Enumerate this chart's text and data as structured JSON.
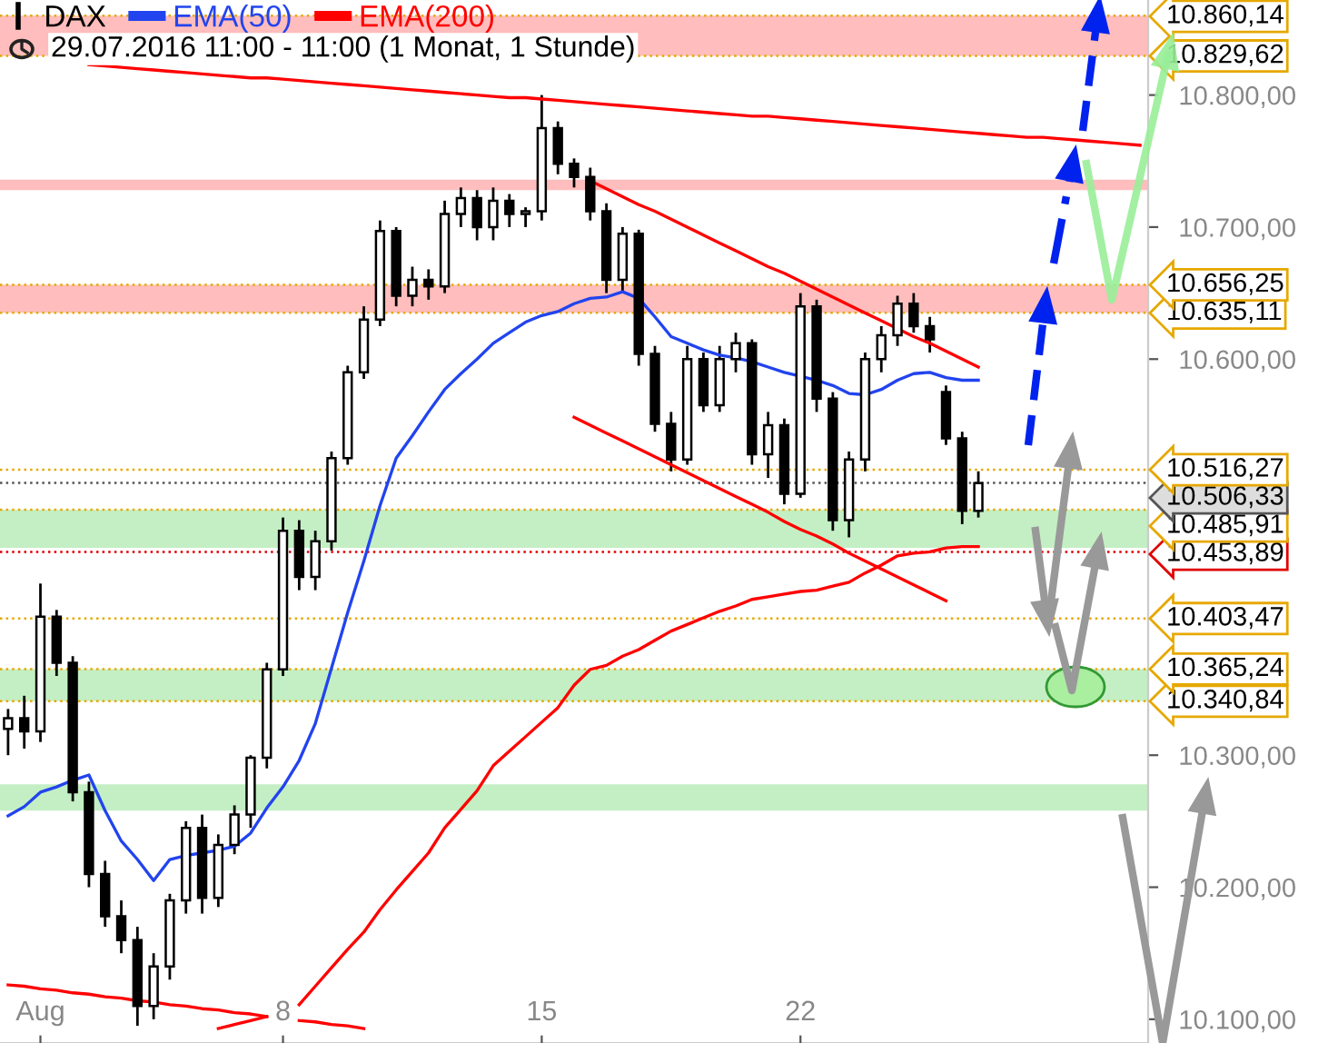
{
  "chart_data": {
    "type": "candlestick",
    "subtitle": "29.07.2016 11:00 - 11:00 (1 Monat, 1 Stunde)",
    "legend": "top left",
    "categories": [
      null,
      null,
      "Aug",
      null,
      null,
      null,
      null,
      null,
      null,
      null,
      null,
      null,
      null,
      null,
      null,
      null,
      null,
      "8",
      null,
      null,
      null,
      null,
      null,
      null,
      null,
      null,
      null,
      null,
      null,
      null,
      null,
      null,
      null,
      "15",
      null,
      null,
      null,
      null,
      null,
      null,
      null,
      null,
      null,
      null,
      null,
      null,
      null,
      null,
      null,
      "22",
      null,
      null,
      null,
      null,
      null,
      null,
      null,
      null,
      null,
      null,
      null,
      null,
      null,
      null,
      null,
      null,
      null,
      null,
      null,
      null,
      null
    ],
    "ylim": [
      10082,
      10872
    ],
    "yticks": [
      {
        "value": 10100,
        "label": "10.100,00"
      },
      {
        "value": 10200,
        "label": "10.200,00"
      },
      {
        "value": 10300,
        "label": "10.300,00"
      },
      {
        "value": 10600,
        "label": "10.600,00"
      },
      {
        "value": 10700,
        "label": "10.700,00"
      },
      {
        "value": 10800,
        "label": "10.800,00"
      }
    ],
    "series": [
      {
        "name": "DAX",
        "color": "#000000",
        "ohlc": [
          [
            10320,
            10335,
            10300,
            10328
          ],
          [
            10328,
            10345,
            10305,
            10318
          ],
          [
            10318,
            10430,
            10310,
            10405
          ],
          [
            10405,
            10410,
            10360,
            10370
          ],
          [
            10370,
            10375,
            10265,
            10272
          ],
          [
            10272,
            10280,
            10200,
            10210
          ],
          [
            10210,
            10220,
            10170,
            10178
          ],
          [
            10178,
            10190,
            10150,
            10160
          ],
          [
            10160,
            10170,
            10095,
            10110
          ],
          [
            10110,
            10150,
            10100,
            10140
          ],
          [
            10140,
            10195,
            10130,
            10190
          ],
          [
            10190,
            10250,
            10180,
            10245
          ],
          [
            10245,
            10255,
            10180,
            10192
          ],
          [
            10192,
            10240,
            10185,
            10232
          ],
          [
            10232,
            10262,
            10225,
            10255
          ],
          [
            10255,
            10300,
            10245,
            10298
          ],
          [
            10298,
            10370,
            10290,
            10365
          ],
          [
            10365,
            10480,
            10360,
            10470
          ],
          [
            10470,
            10478,
            10425,
            10435
          ],
          [
            10435,
            10470,
            10425,
            10462
          ],
          [
            10462,
            10530,
            10455,
            10525
          ],
          [
            10525,
            10595,
            10520,
            10590
          ],
          [
            10590,
            10640,
            10585,
            10630
          ],
          [
            10630,
            10705,
            10625,
            10697
          ],
          [
            10697,
            10700,
            10640,
            10648
          ],
          [
            10648,
            10670,
            10640,
            10660
          ],
          [
            10660,
            10668,
            10645,
            10655
          ],
          [
            10655,
            10720,
            10650,
            10710
          ],
          [
            10710,
            10730,
            10700,
            10722
          ],
          [
            10722,
            10728,
            10690,
            10700
          ],
          [
            10700,
            10730,
            10690,
            10720
          ],
          [
            10720,
            10725,
            10700,
            10710
          ],
          [
            10710,
            10715,
            10700,
            10712
          ],
          [
            10712,
            10800,
            10705,
            10775
          ],
          [
            10775,
            10780,
            10740,
            10748
          ],
          [
            10748,
            10752,
            10730,
            10738
          ],
          [
            10738,
            10745,
            10705,
            10712
          ],
          [
            10712,
            10718,
            10650,
            10660
          ],
          [
            10660,
            10700,
            10650,
            10695
          ],
          [
            10695,
            10698,
            10595,
            10604
          ],
          [
            10604,
            10610,
            10545,
            10551
          ],
          [
            10551,
            10560,
            10515,
            10524
          ],
          [
            10524,
            10610,
            10520,
            10600
          ],
          [
            10600,
            10605,
            10560,
            10565
          ],
          [
            10565,
            10610,
            10560,
            10600
          ],
          [
            10600,
            10620,
            10590,
            10612
          ],
          [
            10612,
            10615,
            10520,
            10528
          ],
          [
            10528,
            10560,
            10510,
            10550
          ],
          [
            10550,
            10555,
            10490,
            10498
          ],
          [
            10498,
            10650,
            10495,
            10640
          ],
          [
            10640,
            10645,
            10560,
            10570
          ],
          [
            10570,
            10575,
            10470,
            10478
          ],
          [
            10478,
            10530,
            10465,
            10524
          ],
          [
            10524,
            10605,
            10515,
            10600
          ],
          [
            10600,
            10625,
            10590,
            10618
          ],
          [
            10618,
            10648,
            10610,
            10642
          ],
          [
            10642,
            10650,
            10620,
            10625
          ],
          [
            10625,
            10632,
            10605,
            10615
          ],
          [
            10575,
            10580,
            10535,
            10540
          ],
          [
            10540,
            10545,
            10475,
            10485
          ],
          [
            10485,
            10515,
            10480,
            10506
          ],
          null,
          null,
          null,
          null,
          null,
          null,
          null,
          null,
          null,
          null
        ]
      },
      {
        "name": "EMA(50)",
        "type": "line",
        "color": "#2244ee",
        "values": [
          10254,
          10261,
          10272,
          10276,
          10281,
          10285,
          10258,
          10235,
          10221,
          10205,
          10221,
          10224,
          10226,
          10228,
          10231,
          10241,
          10260,
          10276,
          10296,
          10324,
          10366,
          10408,
          10447,
          10489,
          10525,
          10542,
          10560,
          10577,
          10589,
          10600,
          10612,
          10620,
          10628,
          10633,
          10636,
          10642,
          10646,
          10647,
          10651,
          10646,
          10632,
          10617,
          10612,
          10607,
          10603,
          10601,
          10598,
          10594,
          10590,
          10587,
          10584,
          10580,
          10574,
          10573,
          10577,
          10584,
          10589,
          10590,
          10586,
          10584,
          10584,
          null,
          null,
          null,
          null,
          null,
          null,
          null,
          null,
          null,
          null
        ]
      },
      {
        "name": "EMA(200)",
        "type": "line",
        "color": "#ff0000",
        "values": [
          null,
          null,
          null,
          null,
          null,
          null,
          null,
          null,
          null,
          null,
          null,
          null,
          null,
          10093,
          10096,
          10099,
          10102,
          null,
          10111,
          10125,
          10139,
          10153,
          10166,
          10183,
          10198,
          10212,
          10226,
          10245,
          10259,
          10273,
          10292,
          10303,
          10314,
          10325,
          10336,
          10353,
          10365,
          10368,
          10375,
          10380,
          10387,
          10394,
          10399,
          10404,
          10409,
          10413,
          10418,
          10420,
          10422,
          10424,
          10425,
          10428,
          10431,
          10438,
          10444,
          10451,
          10453,
          10454,
          10457,
          10458,
          10458,
          null,
          null,
          null,
          null,
          null,
          null,
          null,
          null,
          null,
          null
        ]
      },
      {
        "type": "line",
        "color": "#ff0000",
        "values": [
          null,
          null,
          null,
          null,
          null,
          10823,
          10822,
          10821,
          10820,
          10819,
          10818,
          10817,
          10816,
          10815,
          10814,
          10813,
          10813,
          10812,
          10811,
          10810,
          10809,
          10808,
          10807,
          10806,
          10805,
          10804,
          10803,
          10802,
          10801,
          10800,
          10799,
          10798,
          10798,
          10797,
          10796,
          10795,
          10794,
          10793,
          10792,
          10791,
          10790,
          10789,
          10788,
          10787,
          10786,
          10785,
          10784,
          10784,
          10783,
          10782,
          10781,
          10780,
          10779,
          10778,
          10777,
          10776,
          10775,
          10774,
          10773,
          10772,
          10771,
          10770,
          10769,
          10768,
          10768,
          10767,
          10766,
          10765,
          10764,
          10763,
          10762
        ]
      },
      {
        "type": "line",
        "color": "#ff0000",
        "values": [
          10126,
          10125,
          10123,
          10122,
          10120,
          10119,
          10117,
          10116,
          10114,
          10113,
          10111,
          10110,
          10108,
          10107,
          10105,
          10104,
          10102,
          null,
          10099,
          10098,
          10096,
          10095,
          10093,
          null,
          null,
          null,
          null,
          null,
          null,
          null,
          null,
          null,
          null,
          null,
          null,
          null,
          null,
          null,
          null,
          null,
          null,
          null,
          null,
          null,
          null,
          null,
          null,
          null,
          null,
          null,
          null,
          null,
          null,
          null,
          null,
          null,
          null,
          null,
          null,
          null,
          null,
          null,
          null,
          null,
          null,
          null,
          null,
          null,
          null,
          null,
          null
        ]
      },
      {
        "type": "line",
        "color": "#ff0000",
        "values": [
          null,
          null,
          null,
          null,
          null,
          null,
          null,
          null,
          null,
          null,
          null,
          null,
          null,
          null,
          null,
          null,
          null,
          null,
          null,
          null,
          null,
          null,
          null,
          null,
          null,
          null,
          null,
          null,
          null,
          null,
          null,
          null,
          null,
          null,
          null,
          null,
          10735,
          10729,
          10723,
          10717,
          10712,
          10706,
          10700,
          10694,
          10688,
          10682,
          10676,
          10670,
          10665,
          10659,
          10653,
          10647,
          10641,
          10635,
          10629,
          10623,
          10617,
          10612,
          10606,
          10600,
          10594,
          null,
          null,
          null,
          null,
          null,
          null,
          null,
          null,
          null,
          null
        ]
      },
      {
        "type": "line",
        "color": "#ff0000",
        "values": [
          null,
          null,
          null,
          null,
          null,
          null,
          null,
          null,
          null,
          null,
          null,
          null,
          null,
          null,
          null,
          null,
          null,
          null,
          null,
          null,
          null,
          null,
          null,
          null,
          null,
          null,
          null,
          null,
          null,
          null,
          null,
          null,
          null,
          null,
          null,
          10556,
          10550,
          10544,
          10538,
          10532,
          10526,
          10520,
          10514,
          10508,
          10502,
          10496,
          10490,
          10484,
          10477,
          10471,
          10466,
          10460,
          10453,
          10447,
          10441,
          10435,
          10429,
          10423,
          10417,
          null,
          null,
          null,
          null,
          null,
          null,
          null,
          null,
          null,
          null,
          null,
          null
        ]
      }
    ],
    "bands": [
      {
        "axis": "y",
        "from": 10829.62,
        "to": 10860.14,
        "color": "#ffbdbd"
      },
      {
        "axis": "y",
        "from": 10728,
        "to": 10736,
        "color": "#ffbdbd"
      },
      {
        "axis": "y",
        "from": 10635.11,
        "to": 10656.25,
        "color": "#ffbdbd"
      },
      {
        "axis": "y",
        "from": 10457,
        "to": 10485.91,
        "color": "#c4efc4"
      },
      {
        "axis": "y",
        "from": 10340.84,
        "to": 10365.24,
        "color": "#c4efc4"
      },
      {
        "axis": "y",
        "from": 10258,
        "to": 10278,
        "color": "#c4efc4"
      }
    ],
    "ref_lines": [
      {
        "axis": "y",
        "value": 10860.14,
        "label": "10.860,14",
        "color": "#e6a800"
      },
      {
        "axis": "y",
        "value": 10829.62,
        "label": "10.829,62",
        "color": "#e6a800"
      },
      {
        "axis": "y",
        "value": 10656.25,
        "label": "10.656,25",
        "color": "#e6a800"
      },
      {
        "axis": "y",
        "value": 10635.11,
        "label": "10.635,11",
        "color": "#e6a800"
      },
      {
        "axis": "y",
        "value": 10516.27,
        "label": "10.516,27",
        "color": "#e6a800"
      },
      {
        "axis": "y",
        "value": 10506.33,
        "label": "10.506,33",
        "color": "#555555"
      },
      {
        "axis": "y",
        "value": 10485.91,
        "label": "10.485,91",
        "color": "#e6a800"
      },
      {
        "axis": "y",
        "value": 10453.89,
        "label": "10.453,89",
        "color": "#e00000"
      },
      {
        "axis": "y",
        "value": 10403.47,
        "label": "10.403,47",
        "color": "#e6a800"
      },
      {
        "axis": "y",
        "value": 10365.24,
        "label": "10.365,24",
        "color": "#e6a800"
      },
      {
        "axis": "y",
        "value": 10340.84,
        "label": "10.340,84",
        "color": "#e6a800"
      }
    ]
  }
}
